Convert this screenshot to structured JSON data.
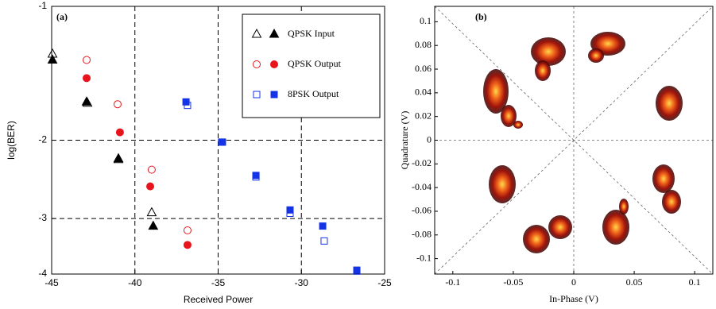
{
  "chart_data": [
    {
      "type": "scatter",
      "label": "(a)",
      "xlabel": "Received Power",
      "ylabel": "log(BER)",
      "xlim": [
        -45,
        -25
      ],
      "xticks": [
        -45,
        -40,
        -35,
        -30,
        -25
      ],
      "ylim": [
        -4,
        -1
      ],
      "yticks": [
        -1,
        -2,
        -3,
        -4
      ],
      "ylog": true,
      "grid_x": [
        -40,
        -35,
        -30
      ],
      "grid_y": [
        -2,
        -3
      ],
      "series": [
        {
          "name": "QPSK Input",
          "color": "#000000",
          "marker": "triangle",
          "x": [
            -44.95,
            -42.85,
            -40.99,
            -38.99
          ],
          "values": [
            -1.28,
            -1.65,
            -2.21,
            -2.91
          ],
          "filled_x": [
            -44.95,
            -42.9,
            -40.99,
            -38.9
          ],
          "filled_values": [
            -1.32,
            -1.64,
            -2.2,
            -3.12
          ]
        },
        {
          "name": "QPSK Output",
          "color": "#e8141c",
          "marker": "circle",
          "x": [
            -42.9,
            -41.04,
            -38.99,
            -36.84
          ],
          "values": [
            -1.32,
            -1.66,
            -2.33,
            -3.19
          ],
          "filled_x": [
            -42.9,
            -40.9,
            -39.08,
            -36.84
          ],
          "filled_values": [
            -1.45,
            -1.92,
            -2.54,
            -3.44
          ]
        },
        {
          "name": "8PSK Output",
          "color": "#1432e6",
          "marker": "square",
          "x": [
            -36.84,
            -34.79,
            -32.73,
            -30.68,
            -28.63,
            -26.67
          ],
          "values": [
            -1.67,
            -2.02,
            -2.42,
            -2.92,
            -3.37,
            -3.94
          ],
          "filled_x": [
            -36.93,
            -34.74,
            -32.73,
            -30.68,
            -28.72,
            -26.67
          ],
          "filled_values": [
            -1.64,
            -2.02,
            -2.4,
            -2.87,
            -3.12,
            -3.92
          ]
        }
      ]
    },
    {
      "type": "constellation",
      "label": "(b)",
      "xlabel": "In-Phase (V)",
      "ylabel": "Quadrature (V)",
      "xlim": [
        -0.115,
        0.115
      ],
      "xticks": [
        -0.1,
        -0.05,
        0,
        0.05,
        0.1
      ],
      "ylim": [
        -0.113,
        0.113
      ],
      "yticks": [
        0.1,
        0.08,
        0.06,
        0.04,
        0.02,
        0,
        -0.02,
        -0.04,
        -0.06,
        -0.08,
        -0.1
      ]
    }
  ]
}
